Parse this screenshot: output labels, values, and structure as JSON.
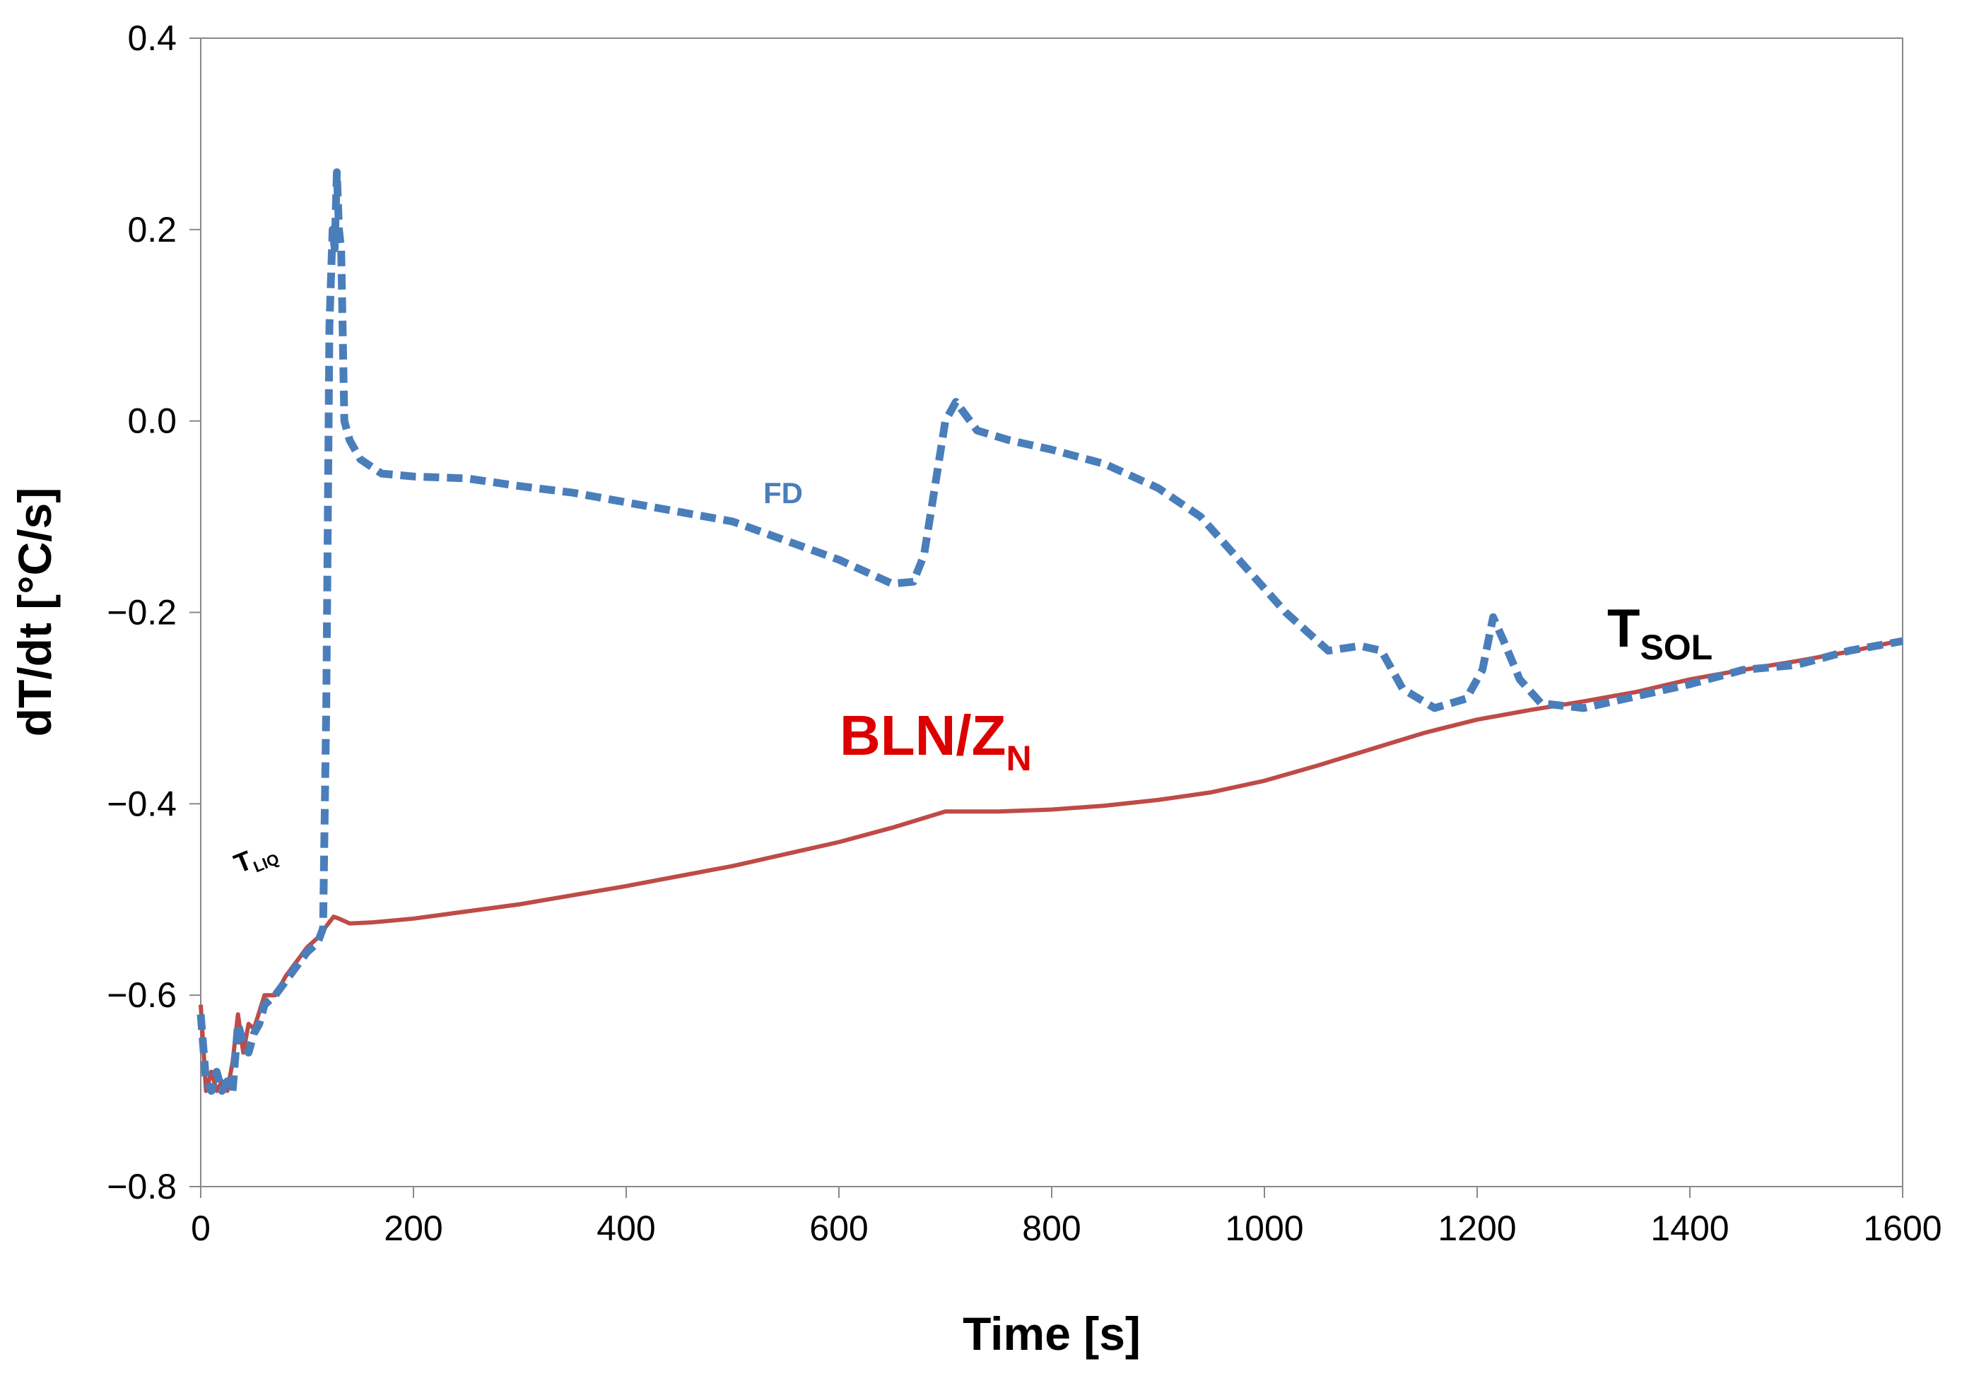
{
  "chart_data": {
    "type": "line",
    "title": "",
    "xlabel": "Time [s]",
    "ylabel": "dT/dt [°C/s]",
    "xlim": [
      0,
      1600
    ],
    "ylim": [
      -0.8,
      0.4
    ],
    "x_ticks": [
      0,
      200,
      400,
      600,
      800,
      1000,
      1200,
      1400,
      1600
    ],
    "x_tick_labels": [
      "0",
      "200",
      "400",
      "600",
      "800",
      "1000",
      "1200",
      "1400",
      "1600"
    ],
    "y_ticks": [
      -0.8,
      -0.6,
      -0.4,
      -0.2,
      0.0,
      0.2,
      0.4
    ],
    "y_tick_labels": [
      "−0.8",
      "−0.6",
      "−0.4",
      "−0.2",
      "0.0",
      "0.2",
      "0.4"
    ],
    "grid": false,
    "series": [
      {
        "name": "FD",
        "color": "#4a7ebb",
        "style": "dashed",
        "points": [
          [
            0,
            -0.62
          ],
          [
            5,
            -0.69
          ],
          [
            10,
            -0.7
          ],
          [
            15,
            -0.68
          ],
          [
            20,
            -0.7
          ],
          [
            25,
            -0.69
          ],
          [
            30,
            -0.7
          ],
          [
            35,
            -0.63
          ],
          [
            40,
            -0.65
          ],
          [
            45,
            -0.66
          ],
          [
            50,
            -0.64
          ],
          [
            55,
            -0.63
          ],
          [
            60,
            -0.61
          ],
          [
            70,
            -0.6
          ],
          [
            80,
            -0.585
          ],
          [
            90,
            -0.57
          ],
          [
            100,
            -0.555
          ],
          [
            110,
            -0.545
          ],
          [
            115,
            -0.53
          ],
          [
            118,
            -0.3
          ],
          [
            121,
            0.1
          ],
          [
            124,
            0.2
          ],
          [
            126,
            0.18
          ],
          [
            128,
            0.26
          ],
          [
            130,
            0.2
          ],
          [
            132,
            0.18
          ],
          [
            135,
            0.0
          ],
          [
            140,
            -0.02
          ],
          [
            150,
            -0.04
          ],
          [
            170,
            -0.055
          ],
          [
            200,
            -0.058
          ],
          [
            250,
            -0.06
          ],
          [
            300,
            -0.068
          ],
          [
            350,
            -0.075
          ],
          [
            400,
            -0.085
          ],
          [
            450,
            -0.095
          ],
          [
            500,
            -0.105
          ],
          [
            550,
            -0.125
          ],
          [
            600,
            -0.145
          ],
          [
            650,
            -0.17
          ],
          [
            670,
            -0.168
          ],
          [
            680,
            -0.14
          ],
          [
            690,
            -0.07
          ],
          [
            700,
            0.0
          ],
          [
            710,
            0.02
          ],
          [
            730,
            -0.01
          ],
          [
            760,
            -0.02
          ],
          [
            800,
            -0.03
          ],
          [
            850,
            -0.045
          ],
          [
            900,
            -0.07
          ],
          [
            940,
            -0.1
          ],
          [
            980,
            -0.15
          ],
          [
            1020,
            -0.2
          ],
          [
            1060,
            -0.24
          ],
          [
            1090,
            -0.235
          ],
          [
            1110,
            -0.24
          ],
          [
            1130,
            -0.28
          ],
          [
            1160,
            -0.3
          ],
          [
            1190,
            -0.29
          ],
          [
            1205,
            -0.26
          ],
          [
            1215,
            -0.205
          ],
          [
            1225,
            -0.23
          ],
          [
            1240,
            -0.27
          ],
          [
            1260,
            -0.295
          ],
          [
            1300,
            -0.3
          ],
          [
            1340,
            -0.29
          ],
          [
            1400,
            -0.275
          ],
          [
            1450,
            -0.26
          ],
          [
            1500,
            -0.255
          ],
          [
            1550,
            -0.24
          ],
          [
            1600,
            -0.23
          ]
        ]
      },
      {
        "name": "BLN/Z_N",
        "color": "#be4b48",
        "style": "solid",
        "points": [
          [
            0,
            -0.61
          ],
          [
            5,
            -0.7
          ],
          [
            10,
            -0.68
          ],
          [
            15,
            -0.7
          ],
          [
            20,
            -0.69
          ],
          [
            25,
            -0.7
          ],
          [
            30,
            -0.67
          ],
          [
            35,
            -0.62
          ],
          [
            40,
            -0.66
          ],
          [
            45,
            -0.63
          ],
          [
            50,
            -0.635
          ],
          [
            60,
            -0.6
          ],
          [
            70,
            -0.6
          ],
          [
            80,
            -0.58
          ],
          [
            90,
            -0.565
          ],
          [
            100,
            -0.55
          ],
          [
            110,
            -0.54
          ],
          [
            120,
            -0.525
          ],
          [
            125,
            -0.518
          ],
          [
            130,
            -0.52
          ],
          [
            140,
            -0.525
          ],
          [
            160,
            -0.524
          ],
          [
            200,
            -0.52
          ],
          [
            300,
            -0.505
          ],
          [
            400,
            -0.486
          ],
          [
            500,
            -0.465
          ],
          [
            600,
            -0.44
          ],
          [
            650,
            -0.425
          ],
          [
            700,
            -0.408
          ],
          [
            750,
            -0.408
          ],
          [
            800,
            -0.406
          ],
          [
            850,
            -0.402
          ],
          [
            900,
            -0.396
          ],
          [
            950,
            -0.388
          ],
          [
            1000,
            -0.376
          ],
          [
            1050,
            -0.36
          ],
          [
            1100,
            -0.343
          ],
          [
            1150,
            -0.326
          ],
          [
            1200,
            -0.312
          ],
          [
            1250,
            -0.302
          ],
          [
            1300,
            -0.293
          ],
          [
            1350,
            -0.283
          ],
          [
            1400,
            -0.27
          ],
          [
            1450,
            -0.26
          ],
          [
            1500,
            -0.251
          ],
          [
            1550,
            -0.241
          ],
          [
            1600,
            -0.229
          ]
        ]
      }
    ],
    "annotations": [
      {
        "id": "fd",
        "text": "FD",
        "color": "#4a7ebb"
      },
      {
        "id": "bln",
        "text": "BLN/Z",
        "sub": "N",
        "color": "#dd0000"
      },
      {
        "id": "tsol",
        "text": "T",
        "sub": "SOL",
        "color": "#000000"
      },
      {
        "id": "tliq",
        "text": "T",
        "sub": "LIQ",
        "color": "#000000"
      }
    ]
  }
}
